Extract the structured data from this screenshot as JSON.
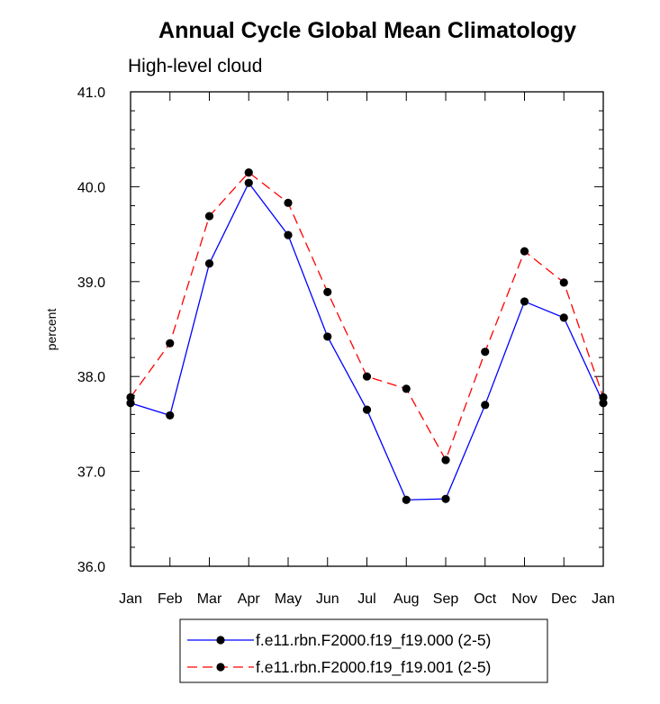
{
  "chart_data": {
    "type": "line",
    "title": "Annual Cycle Global Mean Climatology",
    "subtitle": "High-level cloud",
    "xlabel": "",
    "ylabel": "percent",
    "categories": [
      "Jan",
      "Feb",
      "Mar",
      "Apr",
      "May",
      "Jun",
      "Jul",
      "Aug",
      "Sep",
      "Oct",
      "Nov",
      "Dec",
      "Jan"
    ],
    "ylim": [
      36.0,
      41.0
    ],
    "yticks": [
      "36.0",
      "37.0",
      "38.0",
      "39.0",
      "40.0",
      "41.0"
    ],
    "grid": false,
    "legend_position": "bottom",
    "series": [
      {
        "name": "f.e11.rbn.F2000.f19_f19.000 (2-5)",
        "color": "#0000ff",
        "line_style": "solid",
        "values": [
          37.72,
          37.59,
          39.19,
          40.04,
          39.49,
          38.42,
          37.65,
          36.7,
          36.71,
          37.7,
          38.79,
          38.62,
          37.72
        ]
      },
      {
        "name": "f.e11.rbn.F2000.f19_f19.001 (2-5)",
        "color": "#ff0000",
        "line_style": "dashed",
        "values": [
          37.78,
          38.35,
          39.69,
          40.15,
          39.83,
          38.89,
          38.0,
          37.87,
          37.12,
          38.26,
          39.32,
          38.99,
          37.78
        ]
      }
    ]
  }
}
